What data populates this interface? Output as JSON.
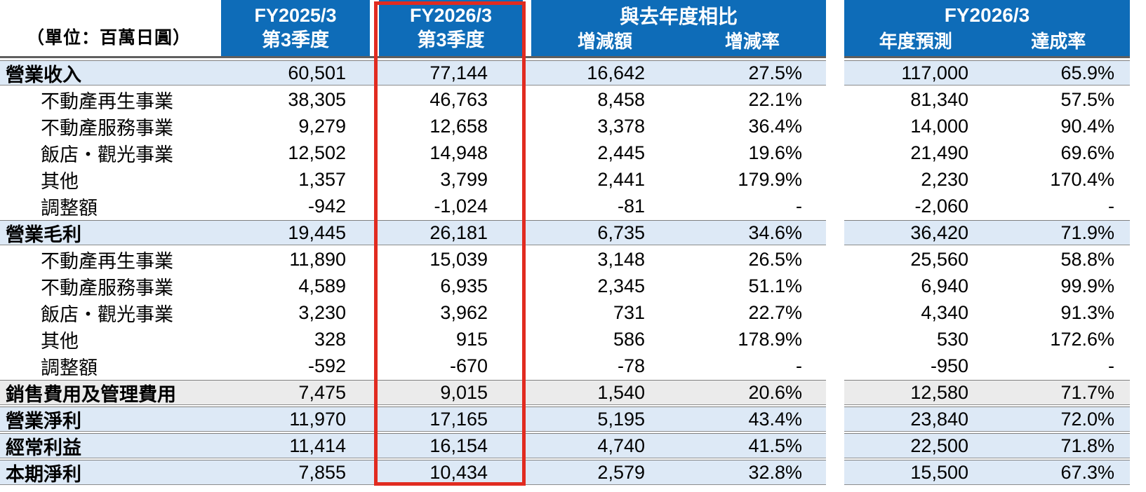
{
  "unit_label": "（單位：百萬日圓）",
  "columns": {
    "q_prev": {
      "line1": "FY2025/3",
      "line2": "第3季度"
    },
    "q_cur": {
      "line1": "FY2026/3",
      "line2": "第3季度"
    },
    "yoy": {
      "title": "與去年度相比",
      "sub1": "增減額",
      "sub2": "增減率"
    },
    "fy": {
      "title": "FY2026/3",
      "sub1": "年度預測",
      "sub2": "達成率"
    }
  },
  "colors": {
    "header_blue": "#0E6CB8",
    "row_highlight_blue": "#DDE9F6",
    "row_highlight_gray": "#EBEBEB",
    "column_highlight_red": "#E12B20"
  },
  "rows": [
    {
      "label": "營業收入",
      "style": "blue",
      "indent": false,
      "q_prev": "60,501",
      "q_cur": "77,144",
      "diff": "16,642",
      "rate": "27.5%",
      "forecast": "117,000",
      "achieve": "65.9%"
    },
    {
      "label": "不動產再生事業",
      "style": "white",
      "indent": true,
      "q_prev": "38,305",
      "q_cur": "46,763",
      "diff": "8,458",
      "rate": "22.1%",
      "forecast": "81,340",
      "achieve": "57.5%"
    },
    {
      "label": "不動產服務事業",
      "style": "white",
      "indent": true,
      "q_prev": "9,279",
      "q_cur": "12,658",
      "diff": "3,378",
      "rate": "36.4%",
      "forecast": "14,000",
      "achieve": "90.4%"
    },
    {
      "label": "飯店・觀光事業",
      "style": "white",
      "indent": true,
      "q_prev": "12,502",
      "q_cur": "14,948",
      "diff": "2,445",
      "rate": "19.6%",
      "forecast": "21,490",
      "achieve": "69.6%"
    },
    {
      "label": "其他",
      "style": "white",
      "indent": true,
      "q_prev": "1,357",
      "q_cur": "3,799",
      "diff": "2,441",
      "rate": "179.9%",
      "forecast": "2,230",
      "achieve": "170.4%"
    },
    {
      "label": "調整額",
      "style": "white",
      "indent": true,
      "q_prev": "-942",
      "q_cur": "-1,024",
      "diff": "-81",
      "rate": "-",
      "forecast": "-2,060",
      "achieve": "-"
    },
    {
      "label": "營業毛利",
      "style": "blue",
      "indent": false,
      "q_prev": "19,445",
      "q_cur": "26,181",
      "diff": "6,735",
      "rate": "34.6%",
      "forecast": "36,420",
      "achieve": "71.9%"
    },
    {
      "label": "不動產再生事業",
      "style": "white",
      "indent": true,
      "q_prev": "11,890",
      "q_cur": "15,039",
      "diff": "3,148",
      "rate": "26.5%",
      "forecast": "25,560",
      "achieve": "58.8%"
    },
    {
      "label": "不動產服務事業",
      "style": "white",
      "indent": true,
      "q_prev": "4,589",
      "q_cur": "6,935",
      "diff": "2,345",
      "rate": "51.1%",
      "forecast": "6,940",
      "achieve": "99.9%"
    },
    {
      "label": "飯店・觀光事業",
      "style": "white",
      "indent": true,
      "q_prev": "3,230",
      "q_cur": "3,962",
      "diff": "731",
      "rate": "22.7%",
      "forecast": "4,340",
      "achieve": "91.3%"
    },
    {
      "label": "其他",
      "style": "white",
      "indent": true,
      "q_prev": "328",
      "q_cur": "915",
      "diff": "586",
      "rate": "178.9%",
      "forecast": "530",
      "achieve": "172.6%"
    },
    {
      "label": "調整額",
      "style": "white",
      "indent": true,
      "q_prev": "-592",
      "q_cur": "-670",
      "diff": "-78",
      "rate": "-",
      "forecast": "-950",
      "achieve": "-"
    },
    {
      "label": "銷售費用及管理費用",
      "style": "gray",
      "indent": false,
      "q_prev": "7,475",
      "q_cur": "9,015",
      "diff": "1,540",
      "rate": "20.6%",
      "forecast": "12,580",
      "achieve": "71.7%"
    },
    {
      "label": "營業淨利",
      "style": "blue",
      "indent": false,
      "q_prev": "11,970",
      "q_cur": "17,165",
      "diff": "5,195",
      "rate": "43.4%",
      "forecast": "23,840",
      "achieve": "72.0%"
    },
    {
      "label": "經常利益",
      "style": "blue",
      "indent": false,
      "q_prev": "11,414",
      "q_cur": "16,154",
      "diff": "4,740",
      "rate": "41.5%",
      "forecast": "22,500",
      "achieve": "71.8%"
    },
    {
      "label": "本期淨利",
      "style": "blue",
      "indent": false,
      "q_prev": "7,855",
      "q_cur": "10,434",
      "diff": "2,579",
      "rate": "32.8%",
      "forecast": "15,500",
      "achieve": "67.3%"
    }
  ]
}
